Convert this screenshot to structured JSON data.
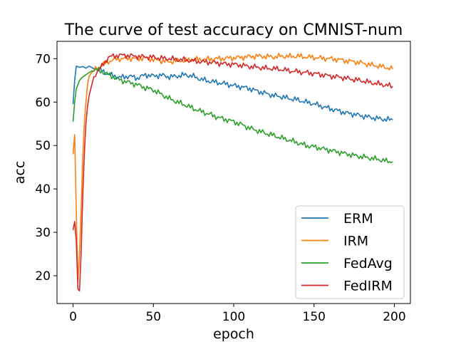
{
  "chart_data": {
    "type": "line",
    "title": "The curve of test accuracy on CMNIST-num",
    "xlabel": "epoch",
    "ylabel": "acc",
    "xlim": [
      -10,
      210
    ],
    "ylim": [
      13.6,
      74.0
    ],
    "xticks": [
      0,
      50,
      100,
      150,
      200
    ],
    "yticks": [
      20,
      30,
      40,
      50,
      60,
      70
    ],
    "grid": false,
    "legend_position": "bottom-right",
    "series": [
      {
        "name": "ERM",
        "color": "#1f77b4",
        "points": [
          [
            0,
            59.5
          ],
          [
            1,
            65.0
          ],
          [
            2,
            68.3
          ],
          [
            4,
            68.0
          ],
          [
            6,
            68.2
          ],
          [
            8,
            67.8
          ],
          [
            10,
            68.3
          ],
          [
            12,
            67.9
          ],
          [
            14,
            68.0
          ],
          [
            16,
            67.5
          ],
          [
            18,
            67.2
          ],
          [
            20,
            66.8
          ],
          [
            25,
            66.0
          ],
          [
            30,
            65.7
          ],
          [
            35,
            66.0
          ],
          [
            40,
            65.5
          ],
          [
            45,
            66.3
          ],
          [
            50,
            66.0
          ],
          [
            55,
            66.2
          ],
          [
            60,
            65.8
          ],
          [
            65,
            66.0
          ],
          [
            70,
            66.3
          ],
          [
            75,
            65.9
          ],
          [
            80,
            65.2
          ],
          [
            85,
            64.8
          ],
          [
            90,
            64.5
          ],
          [
            95,
            64.2
          ],
          [
            100,
            63.8
          ],
          [
            105,
            63.5
          ],
          [
            110,
            63.1
          ],
          [
            115,
            62.5
          ],
          [
            120,
            62.0
          ],
          [
            125,
            61.5
          ],
          [
            130,
            61.2
          ],
          [
            135,
            60.8
          ],
          [
            140,
            60.5
          ],
          [
            145,
            60.0
          ],
          [
            150,
            59.6
          ],
          [
            155,
            59.0
          ],
          [
            160,
            58.5
          ],
          [
            165,
            58.0
          ],
          [
            170,
            57.5
          ],
          [
            175,
            57.2
          ],
          [
            180,
            56.8
          ],
          [
            185,
            56.5
          ],
          [
            190,
            56.2
          ],
          [
            195,
            56.0
          ],
          [
            199,
            55.9
          ]
        ]
      },
      {
        "name": "IRM",
        "color": "#ff7f0e",
        "points": [
          [
            0,
            48.0
          ],
          [
            1,
            52.5
          ],
          [
            2,
            35.0
          ],
          [
            3,
            18.5
          ],
          [
            4,
            25.0
          ],
          [
            5,
            35.0
          ],
          [
            6,
            47.0
          ],
          [
            7,
            55.0
          ],
          [
            8,
            60.0
          ],
          [
            9,
            64.0
          ],
          [
            10,
            66.0
          ],
          [
            12,
            67.0
          ],
          [
            15,
            67.8
          ],
          [
            18,
            68.5
          ],
          [
            20,
            69.0
          ],
          [
            25,
            69.8
          ],
          [
            30,
            70.0
          ],
          [
            35,
            70.1
          ],
          [
            40,
            70.0
          ],
          [
            45,
            70.2
          ],
          [
            50,
            69.8
          ],
          [
            55,
            69.5
          ],
          [
            60,
            69.3
          ],
          [
            65,
            69.5
          ],
          [
            70,
            69.6
          ],
          [
            75,
            69.8
          ],
          [
            80,
            69.8
          ],
          [
            85,
            69.9
          ],
          [
            90,
            70.0
          ],
          [
            95,
            70.1
          ],
          [
            100,
            70.2
          ],
          [
            105,
            70.3
          ],
          [
            110,
            70.5
          ],
          [
            115,
            70.6
          ],
          [
            120,
            70.5
          ],
          [
            125,
            70.4
          ],
          [
            130,
            70.6
          ],
          [
            135,
            70.5
          ],
          [
            140,
            70.6
          ],
          [
            145,
            70.4
          ],
          [
            150,
            70.3
          ],
          [
            155,
            70.1
          ],
          [
            160,
            70.0
          ],
          [
            165,
            69.8
          ],
          [
            170,
            69.5
          ],
          [
            175,
            69.3
          ],
          [
            180,
            69.0
          ],
          [
            185,
            68.6
          ],
          [
            190,
            68.3
          ],
          [
            195,
            68.0
          ],
          [
            199,
            67.6
          ]
        ]
      },
      {
        "name": "FedAvg",
        "color": "#2ca02c",
        "points": [
          [
            0,
            55.5
          ],
          [
            1,
            60.0
          ],
          [
            2,
            63.0
          ],
          [
            4,
            65.0
          ],
          [
            6,
            65.8
          ],
          [
            8,
            66.3
          ],
          [
            10,
            66.8
          ],
          [
            12,
            67.2
          ],
          [
            14,
            67.5
          ],
          [
            16,
            67.3
          ],
          [
            18,
            67.0
          ],
          [
            20,
            66.7
          ],
          [
            25,
            65.8
          ],
          [
            30,
            65.0
          ],
          [
            35,
            64.5
          ],
          [
            40,
            64.0
          ],
          [
            45,
            63.3
          ],
          [
            50,
            62.8
          ],
          [
            55,
            61.8
          ],
          [
            60,
            60.8
          ],
          [
            65,
            60.0
          ],
          [
            70,
            59.3
          ],
          [
            75,
            58.5
          ],
          [
            80,
            57.8
          ],
          [
            85,
            57.2
          ],
          [
            90,
            56.5
          ],
          [
            95,
            56.0
          ],
          [
            100,
            55.5
          ],
          [
            105,
            54.8
          ],
          [
            110,
            54.0
          ],
          [
            115,
            53.4
          ],
          [
            120,
            52.8
          ],
          [
            125,
            52.3
          ],
          [
            130,
            51.7
          ],
          [
            135,
            51.2
          ],
          [
            140,
            50.6
          ],
          [
            145,
            50.0
          ],
          [
            150,
            49.7
          ],
          [
            155,
            49.3
          ],
          [
            160,
            48.9
          ],
          [
            165,
            48.5
          ],
          [
            170,
            48.1
          ],
          [
            175,
            47.7
          ],
          [
            180,
            47.4
          ],
          [
            185,
            47.1
          ],
          [
            190,
            46.8
          ],
          [
            195,
            46.4
          ],
          [
            199,
            46.3
          ]
        ]
      },
      {
        "name": "FedIRM",
        "color": "#d62728",
        "points": [
          [
            0,
            30.5
          ],
          [
            1,
            32.5
          ],
          [
            2,
            28.0
          ],
          [
            3,
            17.0
          ],
          [
            4,
            16.5
          ],
          [
            5,
            25.0
          ],
          [
            6,
            38.0
          ],
          [
            7,
            48.0
          ],
          [
            8,
            55.0
          ],
          [
            9,
            59.0
          ],
          [
            10,
            61.5
          ],
          [
            12,
            64.5
          ],
          [
            14,
            66.5
          ],
          [
            16,
            67.5
          ],
          [
            18,
            68.3
          ],
          [
            20,
            69.3
          ],
          [
            22,
            70.3
          ],
          [
            25,
            70.6
          ],
          [
            30,
            70.8
          ],
          [
            35,
            70.7
          ],
          [
            40,
            70.5
          ],
          [
            45,
            70.4
          ],
          [
            50,
            70.3
          ],
          [
            55,
            70.1
          ],
          [
            60,
            70.0
          ],
          [
            65,
            69.8
          ],
          [
            70,
            69.7
          ],
          [
            75,
            69.5
          ],
          [
            80,
            69.3
          ],
          [
            85,
            69.2
          ],
          [
            90,
            69.0
          ],
          [
            95,
            68.8
          ],
          [
            100,
            68.7
          ],
          [
            105,
            68.5
          ],
          [
            110,
            68.2
          ],
          [
            115,
            68.0
          ],
          [
            120,
            67.8
          ],
          [
            125,
            67.7
          ],
          [
            130,
            67.5
          ],
          [
            135,
            67.2
          ],
          [
            140,
            67.0
          ],
          [
            145,
            66.8
          ],
          [
            150,
            66.6
          ],
          [
            155,
            66.3
          ],
          [
            160,
            66.0
          ],
          [
            165,
            65.8
          ],
          [
            170,
            65.5
          ],
          [
            175,
            65.2
          ],
          [
            180,
            64.9
          ],
          [
            185,
            64.5
          ],
          [
            190,
            64.2
          ],
          [
            195,
            63.9
          ],
          [
            199,
            63.6
          ]
        ]
      }
    ]
  }
}
